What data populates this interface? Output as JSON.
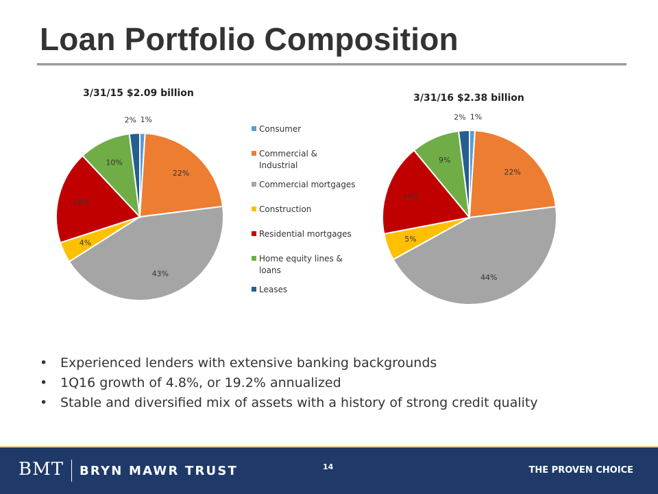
{
  "title": "Loan Portfolio Composition",
  "chart_data": [
    {
      "type": "pie",
      "title": "3/31/15 $2.09 billion",
      "categories": [
        "Consumer",
        "Commercial & Industrial",
        "Commercial mortgages",
        "Construction",
        "Residential mortgages",
        "Home equity lines & loans",
        "Leases"
      ],
      "values": [
        1,
        22,
        43,
        4,
        18,
        10,
        2
      ],
      "labels": [
        "1%",
        "22%",
        "43%",
        "4%",
        "18%",
        "10%",
        "2%"
      ]
    },
    {
      "type": "pie",
      "title": "3/31/16 $2.38 billion",
      "categories": [
        "Consumer",
        "Commercial & Industrial",
        "Commercial mortgages",
        "Construction",
        "Residential mortgages",
        "Home equity lines & loans",
        "Leases"
      ],
      "values": [
        1,
        22,
        44,
        5,
        17,
        9,
        2
      ],
      "labels": [
        "1%",
        "22%",
        "44%",
        "5%",
        "17%",
        "9%",
        "2%"
      ]
    }
  ],
  "legend": {
    "placement": "between charts",
    "items": [
      {
        "lines": [
          "Consumer"
        ],
        "color": "#5b9bd5"
      },
      {
        "lines": [
          "Commercial &",
          "Industrial"
        ],
        "color": "#ed7d31"
      },
      {
        "lines": [
          "Commercial mortgages"
        ],
        "color": "#a5a5a5"
      },
      {
        "lines": [
          "Construction"
        ],
        "color": "#ffc000"
      },
      {
        "lines": [
          "Residential mortgages"
        ],
        "color": "#c00000"
      },
      {
        "lines": [
          "Home equity lines &",
          "loans"
        ],
        "color": "#70ad47"
      },
      {
        "lines": [
          "Leases"
        ],
        "color": "#255e91"
      }
    ]
  },
  "bullets": [
    "Experienced lenders with extensive banking backgrounds",
    "1Q16 growth of 4.8%, or 19.2% annualized",
    "Stable and diversified mix of assets with a history of strong credit quality"
  ],
  "bullet_symbol": "•",
  "footer": {
    "logo_mark": "BMT",
    "logo_name": "BRYN MAWR TRUST",
    "page_number": "14",
    "tagline": "THE PROVEN CHOICE"
  },
  "colors": {
    "footer_bg": "#1f3a68",
    "title_rule": "#9a9a9a"
  }
}
